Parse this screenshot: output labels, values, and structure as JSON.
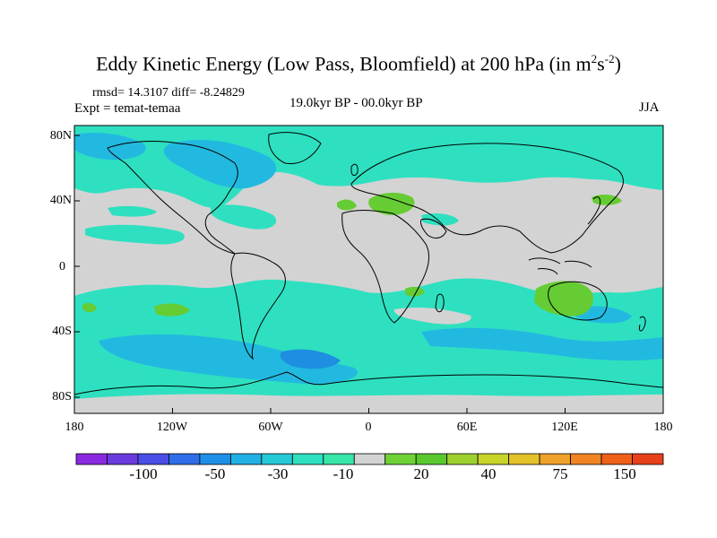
{
  "title": {
    "main": "Eddy Kinetic Energy (Low Pass, Bloomfield) at 200 hPa (in m",
    "sup1": "2",
    "mid": "s",
    "sup2": "-2",
    "end": ")"
  },
  "stats": "rmsd= 14.3107  diff= -8.24829",
  "experiment": "Expt = temat-temaa",
  "period": "19.0kyr BP - 00.0kyr BP",
  "season": "JJA",
  "y_axis": {
    "ticks": [
      "80N",
      "40N",
      "0",
      "40S",
      "80S"
    ]
  },
  "x_axis": {
    "ticks": [
      "180",
      "120W",
      "60W",
      "0",
      "60E",
      "120E",
      "180"
    ]
  },
  "colorbar": {
    "labels": [
      "-100",
      "-50",
      "-30",
      "-10",
      "20",
      "40",
      "75",
      "150"
    ],
    "colors": [
      "#8a2be2",
      "#6a3ce0",
      "#4a4ee6",
      "#2f6ee8",
      "#1e90e8",
      "#22b1e4",
      "#26c9d8",
      "#2ee0c0",
      "#38e6a8",
      "#d3d3d3",
      "#6fd236",
      "#5ac92e",
      "#9fd12e",
      "#c9d42a",
      "#e3c22a",
      "#efa22a",
      "#f08322",
      "#ef6018",
      "#e8401a"
    ]
  },
  "map_colors": {
    "neutral": "#d3d3d3",
    "neg_light": "#2ee0c0",
    "neg_mid": "#22b9e0",
    "neg_dark": "#1e8fe0",
    "pos": "#66cc33",
    "coast": "#000000"
  }
}
